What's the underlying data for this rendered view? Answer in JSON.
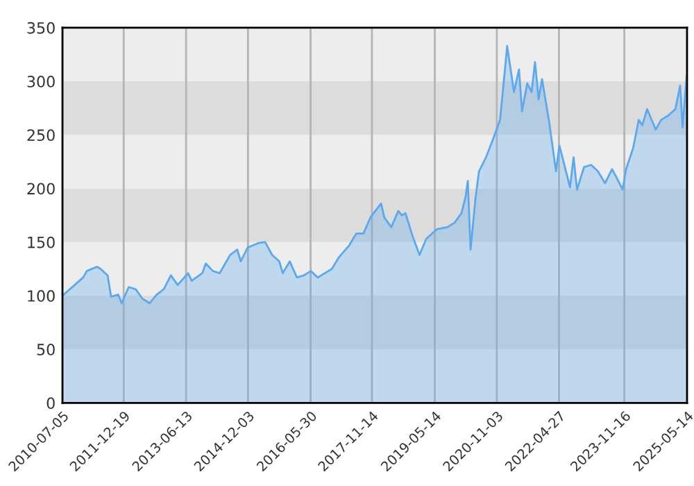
{
  "chart_data": {
    "type": "area",
    "xlim": [
      "2010-07-05",
      "2025-05-14"
    ],
    "xticks": [
      {
        "value": "2010-07-05",
        "label": "2010-07-05"
      },
      {
        "value": "2011-12-19",
        "label": "2011-12-19"
      },
      {
        "value": "2013-06-13",
        "label": "2013-06-13"
      },
      {
        "value": "2014-12-03",
        "label": "2014-12-03"
      },
      {
        "value": "2016-05-30",
        "label": "2016-05-30"
      },
      {
        "value": "2017-11-14",
        "label": "2017-11-14"
      },
      {
        "value": "2019-05-14",
        "label": "2019-05-14"
      },
      {
        "value": "2020-11-03",
        "label": "2020-11-03"
      },
      {
        "value": "2022-04-27",
        "label": "2022-04-27"
      },
      {
        "value": "2023-11-16",
        "label": "2023-11-16"
      },
      {
        "value": "2025-05-14",
        "label": "2025-05-14"
      }
    ],
    "ylim": [
      0,
      350
    ],
    "yticks": [
      0,
      50,
      100,
      150,
      200,
      250,
      300,
      350
    ],
    "grid": true,
    "series": [
      {
        "color": "#5aa9f0",
        "x": [
          "2010-07-05",
          "2011-01",
          "2011-02",
          "2011-05",
          "2011-06",
          "2011-08",
          "2011-09",
          "2011-11",
          "2011-12",
          "2012-02",
          "2012-04",
          "2012-06",
          "2012-08",
          "2012-10",
          "2012-12",
          "2013-02",
          "2013-04",
          "2013-07",
          "2013-08",
          "2013-11",
          "2013-12",
          "2014-02",
          "2014-04",
          "2014-07",
          "2014-09",
          "2014-10",
          "2014-12",
          "2015-03",
          "2015-05",
          "2015-07",
          "2015-09",
          "2015-10",
          "2015-12",
          "2016-02",
          "2016-04",
          "2016-06",
          "2016-08",
          "2016-12",
          "2017-02",
          "2017-05",
          "2017-07",
          "2017-09",
          "2017-11",
          "2018-02",
          "2018-03",
          "2018-05",
          "2018-07",
          "2018-08",
          "2018-09",
          "2018-11",
          "2019-01",
          "2019-03",
          "2019-06",
          "2019-09",
          "2019-11",
          "2020-01",
          "2020-02-05",
          "2020-02-25",
          "2020-03-20",
          "2020-05",
          "2020-06",
          "2020-08",
          "2020-10",
          "2020-12",
          "2021-01",
          "2021-02",
          "2021-04",
          "2021-05-15",
          "2021-06-10",
          "2021-07-25",
          "2021-09",
          "2021-10",
          "2021-11",
          "2021-12",
          "2022-02",
          "2022-04",
          "2022-05",
          "2022-06",
          "2022-08",
          "2022-09",
          "2022-10",
          "2022-12",
          "2023-02",
          "2023-04",
          "2023-06",
          "2023-08",
          "2023-09",
          "2023-11",
          "2023-12",
          "2024-02",
          "2024-03-20",
          "2024-04-20",
          "2024-06",
          "2024-08-15",
          "2024-10",
          "2024-12",
          "2025-02",
          "2025-03-15",
          "2025-04-05",
          "2025-05-10"
        ],
        "values": [
          100,
          117,
          123,
          127,
          125,
          119,
          99,
          101,
          93,
          108,
          106,
          97,
          93,
          101,
          106,
          119,
          110,
          121,
          114,
          121,
          130,
          123,
          121,
          138,
          143,
          132,
          145,
          149,
          150,
          138,
          132,
          121,
          132,
          117,
          119,
          123,
          117,
          125,
          136,
          147,
          158,
          158,
          173,
          186,
          173,
          164,
          179,
          175,
          177,
          156,
          138,
          153,
          162,
          164,
          168,
          177,
          192,
          207,
          143,
          190,
          216,
          229,
          246,
          264,
          298,
          333,
          290,
          311,
          272,
          298,
          290,
          318,
          283,
          302,
          262,
          216,
          240,
          227,
          201,
          229,
          199,
          220,
          222,
          216,
          205,
          218,
          212,
          199,
          218,
          238,
          264,
          259,
          274,
          255,
          264,
          268,
          274,
          296,
          257,
          305
        ]
      }
    ]
  }
}
